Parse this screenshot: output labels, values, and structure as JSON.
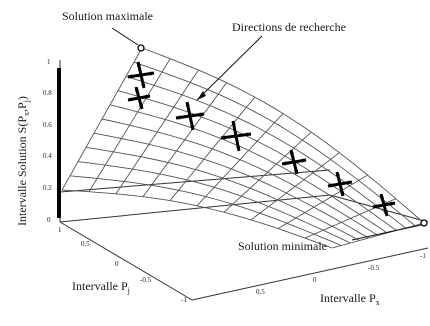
{
  "annotations": {
    "solution_max": "Solution maximale",
    "search_directions": "Directions de recherche",
    "solution_min": "Solution minimale"
  },
  "axes": {
    "y_label": "Intervalle Solution  S(P",
    "y_label_sub1": "x",
    "y_label_mid": ",P",
    "y_label_sub2": "j",
    "y_label_end": ")",
    "pj_label": "Intervalle P",
    "pj_sub": "j",
    "px_label": "Intervalle P",
    "px_sub": "x"
  },
  "ticks": {
    "z": [
      "1",
      "0.8",
      "0.6",
      "0.4",
      "0.2",
      "0"
    ],
    "pj": [
      "1",
      "0.5",
      "0",
      "-0.5",
      "-1"
    ],
    "px": [
      "0.5",
      "0",
      "-0.5",
      "-1"
    ]
  },
  "colors": {
    "mesh": "#555555",
    "arrows": "#000000"
  }
}
